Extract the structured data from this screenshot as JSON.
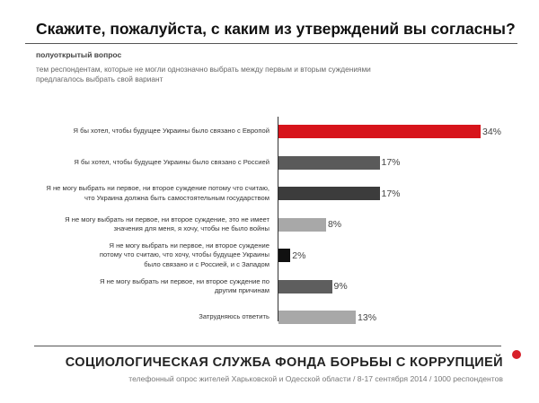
{
  "header": {
    "title": "Скажите, пожалуйста, с каким из утверждений вы согласны?",
    "subhead": "полуоткрытый вопрос",
    "note_line1": "тем респондентам, которые не могли однозначно выбрать между первым и вторым суждениями",
    "note_line2": "предлагалось выбрать свой вариант"
  },
  "chart_data": {
    "type": "bar",
    "orientation": "horizontal",
    "value_unit": "%",
    "xlim": [
      0,
      34
    ],
    "categories": [
      [
        "Я бы хотел, чтобы будущее Украины было связано с Европой"
      ],
      [
        "Я бы хотел, чтобы будущее Украины было связано с Россией"
      ],
      [
        "Я не могу выбрать ни первое, ни второе суждение потому что считаю,",
        "что Украина должна быть самостоятельным государством"
      ],
      [
        "Я не могу выбрать ни первое, ни второе суждение, это не имеет",
        "значения для меня, я хочу, чтобы не было войны"
      ],
      [
        "Я не могу выбрать ни первое, ни второе суждение",
        "потому что считаю, что хочу, чтобы будущее Украины",
        "было связано и с Россией, и с Западом"
      ],
      [
        "Я не могу выбрать ни первое, ни второе суждение по",
        "другим причинам"
      ],
      [
        "Затрудняюсь ответить"
      ]
    ],
    "values": [
      34,
      17,
      17,
      8,
      2,
      9,
      13
    ],
    "value_labels": [
      "34%",
      "17%",
      "17%",
      "8%",
      "2%",
      "9%",
      "13%"
    ],
    "colors": [
      "#d7141b",
      "#5a5a5a",
      "#3c3c3c",
      "#a8a8a8",
      "#111111",
      "#5e5e5e",
      "#a8a8a8"
    ]
  },
  "footer": {
    "organization": "СОЦИОЛОГИЧЕСКАЯ СЛУЖБА ФОНДА БОРЬБЫ С КОРРУПЦИЕЙ",
    "source": "телефонный опрос жителей Харьковской и Одесской области / 8-17 сентября 2014 / 1000 респондентов"
  }
}
